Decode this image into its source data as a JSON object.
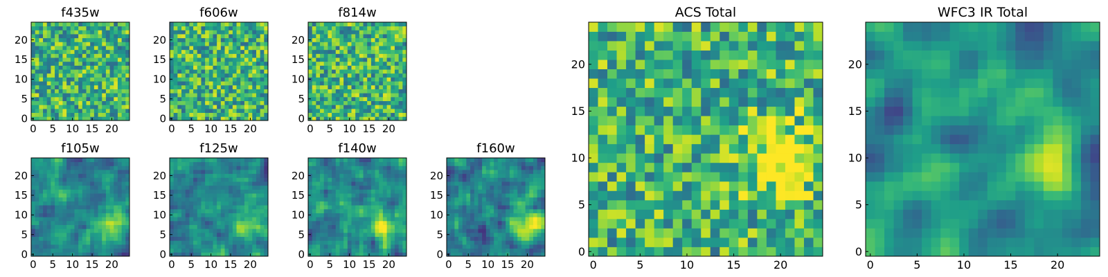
{
  "chart_data": [
    {
      "type": "heatmap",
      "title": "f435w",
      "colormap": "viridis",
      "ylim": [
        0,
        24
      ],
      "xlim": [
        0,
        24
      ],
      "xticks": [
        "0",
        "5",
        "10",
        "15",
        "20"
      ],
      "yticks": [
        "0",
        "5",
        "10",
        "15",
        "20"
      ],
      "seed": 11,
      "smooth": 0,
      "bright_spot": null
    },
    {
      "type": "heatmap",
      "title": "f606w",
      "colormap": "viridis",
      "ylim": [
        0,
        24
      ],
      "xlim": [
        0,
        24
      ],
      "xticks": [
        "0",
        "5",
        "10",
        "15",
        "20"
      ],
      "yticks": [
        "0",
        "5",
        "10",
        "15",
        "20"
      ],
      "seed": 23,
      "smooth": 0,
      "bright_spot": null
    },
    {
      "type": "heatmap",
      "title": "f814w",
      "colormap": "viridis",
      "ylim": [
        0,
        24
      ],
      "xlim": [
        0,
        24
      ],
      "xticks": [
        "0",
        "5",
        "10",
        "15",
        "20"
      ],
      "yticks": [
        "0",
        "5",
        "10",
        "15",
        "20"
      ],
      "seed": 37,
      "smooth": 0,
      "bright_spot": null
    },
    {
      "type": "heatmap",
      "title": "f105w",
      "colormap": "viridis",
      "ylim": [
        0,
        24
      ],
      "xlim": [
        0,
        24
      ],
      "xticks": [
        "0",
        "5",
        "10",
        "15",
        "20"
      ],
      "yticks": [
        "0",
        "5",
        "10",
        "15",
        "20"
      ],
      "seed": 41,
      "smooth": 1,
      "bright_spot": [
        19,
        7
      ]
    },
    {
      "type": "heatmap",
      "title": "f125w",
      "colormap": "viridis",
      "ylim": [
        0,
        24
      ],
      "xlim": [
        0,
        24
      ],
      "xticks": [
        "0",
        "5",
        "10",
        "15",
        "20"
      ],
      "yticks": [
        "0",
        "5",
        "10",
        "15",
        "20"
      ],
      "seed": 53,
      "smooth": 1,
      "bright_spot": [
        19,
        7
      ]
    },
    {
      "type": "heatmap",
      "title": "f140w",
      "colormap": "viridis",
      "ylim": [
        0,
        24
      ],
      "xlim": [
        0,
        24
      ],
      "xticks": [
        "0",
        "5",
        "10",
        "15",
        "20"
      ],
      "yticks": [
        "0",
        "5",
        "10",
        "15",
        "20"
      ],
      "seed": 67,
      "smooth": 1,
      "bright_spot": [
        19,
        7
      ]
    },
    {
      "type": "heatmap",
      "title": "f160w",
      "colormap": "viridis",
      "ylim": [
        0,
        24
      ],
      "xlim": [
        0,
        24
      ],
      "xticks": [
        "0",
        "5",
        "10",
        "15",
        "20"
      ],
      "yticks": [
        "0",
        "5",
        "10",
        "15",
        "20"
      ],
      "seed": 79,
      "smooth": 1,
      "bright_spot": [
        21,
        8
      ]
    },
    {
      "type": "heatmap",
      "title": "ACS Total",
      "colormap": "viridis",
      "ylim": [
        0,
        24
      ],
      "xlim": [
        0,
        24
      ],
      "xticks": [
        "0",
        "5",
        "10",
        "15",
        "20"
      ],
      "yticks": [
        "0",
        "5",
        "10",
        "15",
        "20"
      ],
      "seed": 97,
      "smooth": 0,
      "bright_spot": [
        20,
        10
      ]
    },
    {
      "type": "heatmap",
      "title": "WFC3 IR Total",
      "colormap": "viridis",
      "ylim": [
        0,
        24
      ],
      "xlim": [
        0,
        24
      ],
      "xticks": [
        "0",
        "5",
        "10",
        "15",
        "20"
      ],
      "yticks": [
        "0",
        "5",
        "10",
        "15",
        "20"
      ],
      "seed": 113,
      "smooth": 2,
      "bright_spot": [
        19,
        9
      ]
    }
  ]
}
